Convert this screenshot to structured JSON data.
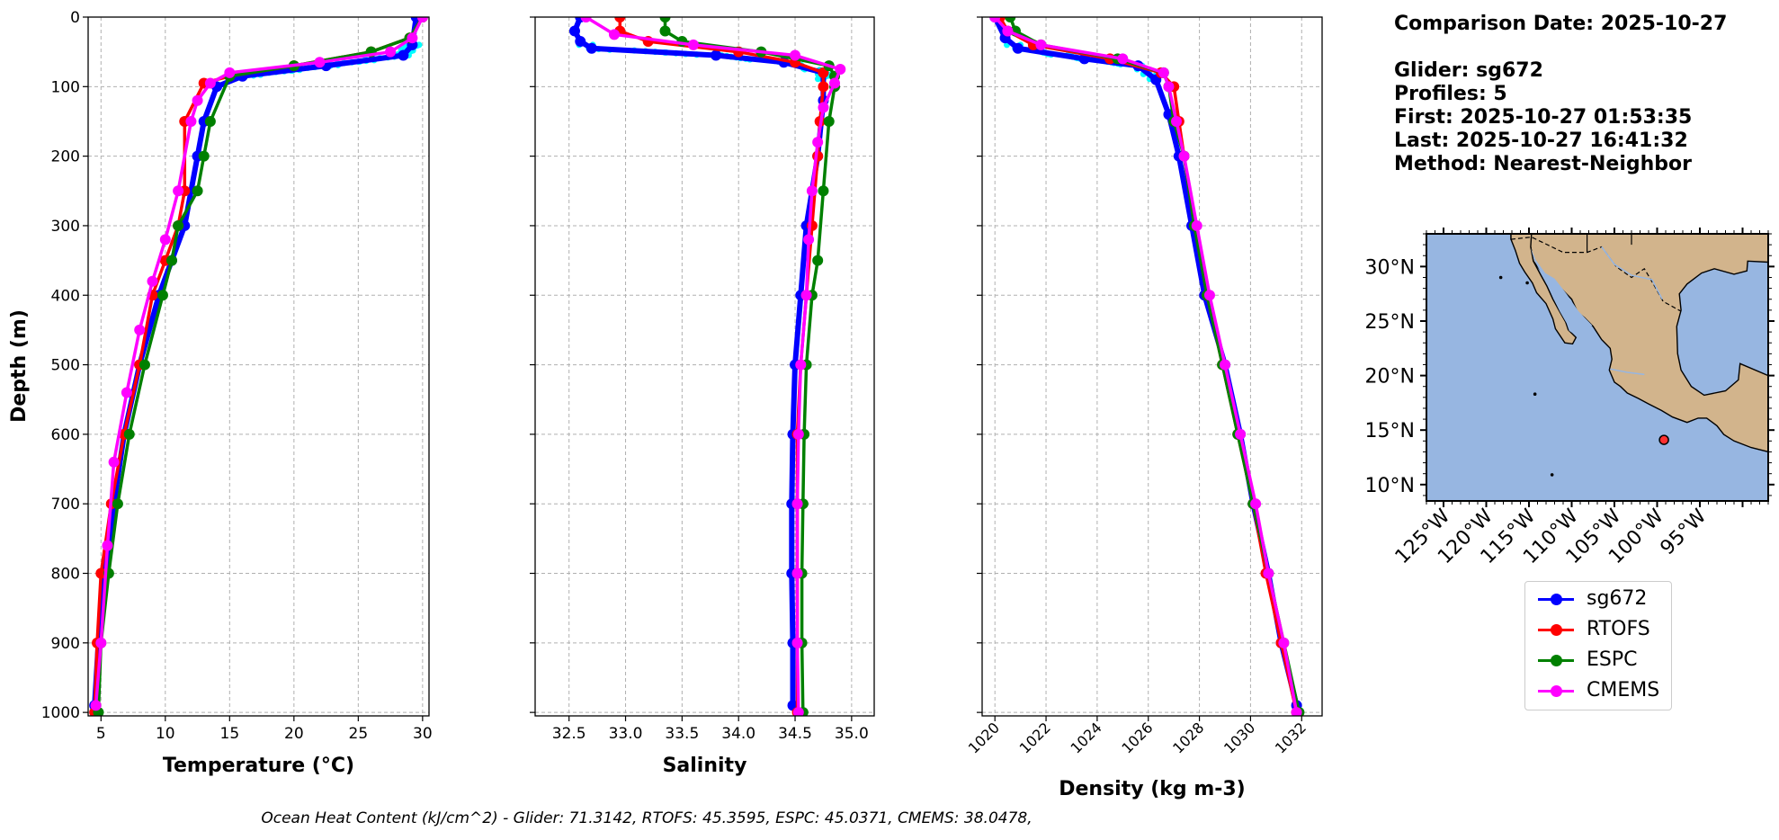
{
  "chart_data": [
    {
      "type": "line",
      "panel": "temperature",
      "xlabel": "Temperature (°C)",
      "ylabel": "Depth (m)",
      "xlim": [
        4,
        30.5
      ],
      "ylim": [
        1005,
        0
      ],
      "xticks": [
        5,
        10,
        15,
        20,
        25,
        30
      ],
      "xtick_labels": [
        "5",
        "10",
        "15",
        "20",
        "25",
        "30"
      ],
      "yticks": [
        0,
        100,
        200,
        300,
        400,
        500,
        600,
        700,
        800,
        900,
        1000
      ],
      "ytick_labels": [
        "0",
        "100",
        "200",
        "300",
        "400",
        "500",
        "600",
        "700",
        "800",
        "900",
        "1000"
      ],
      "grid": true,
      "series": [
        {
          "name": "sg672",
          "color": "#0000ff",
          "x": [
            29.5,
            29.2,
            28.5,
            22.5,
            16,
            14,
            13,
            12.5,
            11.5,
            10.5,
            9.5,
            8,
            6.8,
            6,
            5.3,
            4.8,
            4.5
          ],
          "y": [
            0,
            40,
            55,
            70,
            85,
            100,
            150,
            200,
            300,
            350,
            400,
            500,
            600,
            700,
            800,
            900,
            990
          ]
        },
        {
          "name": "RTOFS",
          "color": "#ff0000",
          "x": [
            30,
            29,
            26,
            20,
            15,
            13,
            11.5,
            11.5,
            11,
            10,
            9,
            8,
            6.8,
            5.8,
            5,
            4.7,
            4.5
          ],
          "y": [
            0,
            30,
            50,
            70,
            85,
            95,
            150,
            250,
            300,
            350,
            400,
            500,
            600,
            700,
            800,
            900,
            1000
          ]
        },
        {
          "name": "ESPC",
          "color": "#008000",
          "x": [
            30,
            29,
            26,
            20,
            15,
            13.5,
            13,
            12.5,
            11,
            10.5,
            9.8,
            8.4,
            7.2,
            6.3,
            5.6,
            5.0,
            4.8
          ],
          "y": [
            0,
            30,
            50,
            70,
            85,
            150,
            200,
            250,
            300,
            350,
            400,
            500,
            600,
            700,
            800,
            900,
            1000
          ]
        },
        {
          "name": "CMEMS",
          "color": "#ff00ff",
          "x": [
            30,
            29.2,
            27.5,
            22,
            15,
            13.5,
            12.5,
            12,
            11,
            10,
            9,
            8,
            7,
            6,
            5.5,
            5.0,
            4.6
          ],
          "y": [
            0,
            30,
            50,
            65,
            80,
            95,
            120,
            150,
            250,
            320,
            380,
            450,
            540,
            640,
            760,
            900,
            990
          ]
        }
      ]
    },
    {
      "type": "line",
      "panel": "salinity",
      "xlabel": "Salinity",
      "xlim": [
        32.2,
        35.2
      ],
      "ylim": [
        1005,
        0
      ],
      "xticks": [
        32.5,
        33.0,
        33.5,
        34.0,
        34.5,
        35.0
      ],
      "xtick_labels": [
        "32.5",
        "33.0",
        "33.5",
        "34.0",
        "34.5",
        "35.0"
      ],
      "yticks": [
        0,
        100,
        200,
        300,
        400,
        500,
        600,
        700,
        800,
        900,
        1000
      ],
      "grid": true,
      "series": [
        {
          "name": "sg672",
          "x": [
            32.6,
            32.55,
            32.6,
            32.7,
            33.8,
            34.4,
            34.75,
            34.75,
            34.7,
            34.6,
            34.55,
            34.5,
            34.48,
            34.47,
            34.47,
            34.48,
            34.48
          ],
          "y": [
            0,
            20,
            35,
            45,
            55,
            65,
            80,
            120,
            200,
            300,
            400,
            500,
            600,
            700,
            800,
            900,
            990
          ]
        },
        {
          "name": "RTOFS",
          "x": [
            32.95,
            32.95,
            33.2,
            34.0,
            34.5,
            34.75,
            34.75,
            34.72,
            34.7,
            34.65,
            34.6,
            34.55,
            34.52,
            34.52,
            34.52,
            34.52,
            34.52
          ],
          "y": [
            0,
            20,
            35,
            50,
            65,
            80,
            100,
            150,
            200,
            300,
            400,
            500,
            600,
            700,
            800,
            900,
            1000
          ]
        },
        {
          "name": "ESPC",
          "x": [
            33.35,
            33.35,
            33.5,
            34.2,
            34.8,
            34.85,
            34.85,
            34.8,
            34.75,
            34.7,
            34.65,
            34.6,
            34.58,
            34.57,
            34.56,
            34.56,
            34.57
          ],
          "y": [
            0,
            20,
            35,
            50,
            70,
            85,
            100,
            150,
            250,
            350,
            400,
            500,
            600,
            700,
            800,
            900,
            1000
          ]
        },
        {
          "name": "CMEMS",
          "x": [
            32.65,
            32.9,
            33.6,
            34.5,
            34.9,
            34.85,
            34.75,
            34.7,
            34.65,
            34.62,
            34.6,
            34.55,
            34.53,
            34.52,
            34.52,
            34.52,
            34.53
          ],
          "y": [
            0,
            25,
            40,
            55,
            75,
            95,
            130,
            180,
            250,
            320,
            400,
            500,
            600,
            700,
            800,
            900,
            1000
          ]
        }
      ]
    },
    {
      "type": "line",
      "panel": "density",
      "xlabel": "Density (kg m-3)",
      "xlim": [
        1019.5,
        1032.8
      ],
      "ylim": [
        1005,
        0
      ],
      "xticks": [
        1020,
        1022,
        1024,
        1026,
        1028,
        1030,
        1032
      ],
      "xtick_labels": [
        "1020",
        "1022",
        "1024",
        "1026",
        "1028",
        "1030",
        "1032"
      ],
      "yticks": [
        0,
        100,
        200,
        300,
        400,
        500,
        600,
        700,
        800,
        900,
        1000
      ],
      "grid": true,
      "series": [
        {
          "name": "sg672",
          "x": [
            1020.0,
            1020.4,
            1020.9,
            1023.5,
            1025.6,
            1026.3,
            1026.8,
            1027.2,
            1027.7,
            1028.2,
            1029.0,
            1029.6,
            1030.1,
            1030.7,
            1031.2,
            1031.8
          ],
          "y": [
            0,
            30,
            45,
            60,
            70,
            90,
            140,
            200,
            300,
            400,
            500,
            600,
            700,
            800,
            900,
            990
          ]
        },
        {
          "name": "RTOFS",
          "x": [
            1020.2,
            1020.5,
            1021.5,
            1024.5,
            1026.5,
            1027.0,
            1027.2,
            1027.4,
            1027.8,
            1028.3,
            1028.9,
            1029.5,
            1030.1,
            1030.6,
            1031.2,
            1031.8
          ],
          "y": [
            0,
            20,
            40,
            60,
            80,
            100,
            150,
            200,
            300,
            400,
            500,
            600,
            700,
            800,
            900,
            1000
          ]
        },
        {
          "name": "ESPC",
          "x": [
            1020.6,
            1020.8,
            1021.8,
            1024.8,
            1026.6,
            1026.8,
            1027.0,
            1027.4,
            1027.8,
            1028.3,
            1028.9,
            1029.5,
            1030.1,
            1030.7,
            1031.3,
            1031.9
          ],
          "y": [
            0,
            20,
            40,
            60,
            80,
            100,
            150,
            200,
            300,
            400,
            500,
            600,
            700,
            800,
            900,
            1000
          ]
        },
        {
          "name": "CMEMS",
          "x": [
            1020.0,
            1020.5,
            1021.8,
            1025.0,
            1026.6,
            1026.8,
            1027.1,
            1027.4,
            1027.9,
            1028.4,
            1029.0,
            1029.6,
            1030.2,
            1030.7,
            1031.3,
            1031.8
          ],
          "y": [
            0,
            20,
            40,
            60,
            80,
            100,
            150,
            200,
            300,
            400,
            500,
            600,
            700,
            800,
            900,
            1000
          ]
        }
      ]
    },
    {
      "type": "map",
      "panel": "location",
      "lon_range": [
        -127,
        -87
      ],
      "lat_range": [
        8.5,
        33
      ],
      "xticks": [
        -125,
        -120,
        -115,
        -110,
        -105,
        -100,
        -95
      ],
      "xtick_labels": [
        "125°W",
        "120°W",
        "115°W",
        "110°W",
        "105°W",
        "100°W",
        "95°W"
      ],
      "yticks": [
        10,
        15,
        20,
        25,
        30
      ],
      "ytick_labels": [
        "10°N",
        "15°N",
        "20°N",
        "25°N",
        "30°N"
      ],
      "glider_position": {
        "lon": -99.2,
        "lat": 14.1
      }
    }
  ],
  "colors": {
    "sg672": "#0000ff",
    "RTOFS": "#ff0000",
    "ESPC": "#008000",
    "CMEMS": "#ff00ff",
    "glider_raw": "#00ffff",
    "ocean": "#97b6e1",
    "land": "#d2b48c",
    "grid": "#b0b0b0"
  },
  "info": {
    "comparison_date": "Comparison Date: 2025-10-27",
    "glider": "Glider: sg672",
    "profiles": "Profiles: 5",
    "first": "First: 2025-10-27 01:53:35",
    "last": "Last: 2025-10-27 16:41:32",
    "method": "Method: Nearest-Neighbor"
  },
  "legend": {
    "items": [
      "sg672",
      "RTOFS",
      "ESPC",
      "CMEMS"
    ]
  },
  "footer": "Ocean Heat Content (kJ/cm^2) - Glider: 71.3142,  RTOFS: 45.3595,  ESPC: 45.0371,  CMEMS: 38.0478,"
}
